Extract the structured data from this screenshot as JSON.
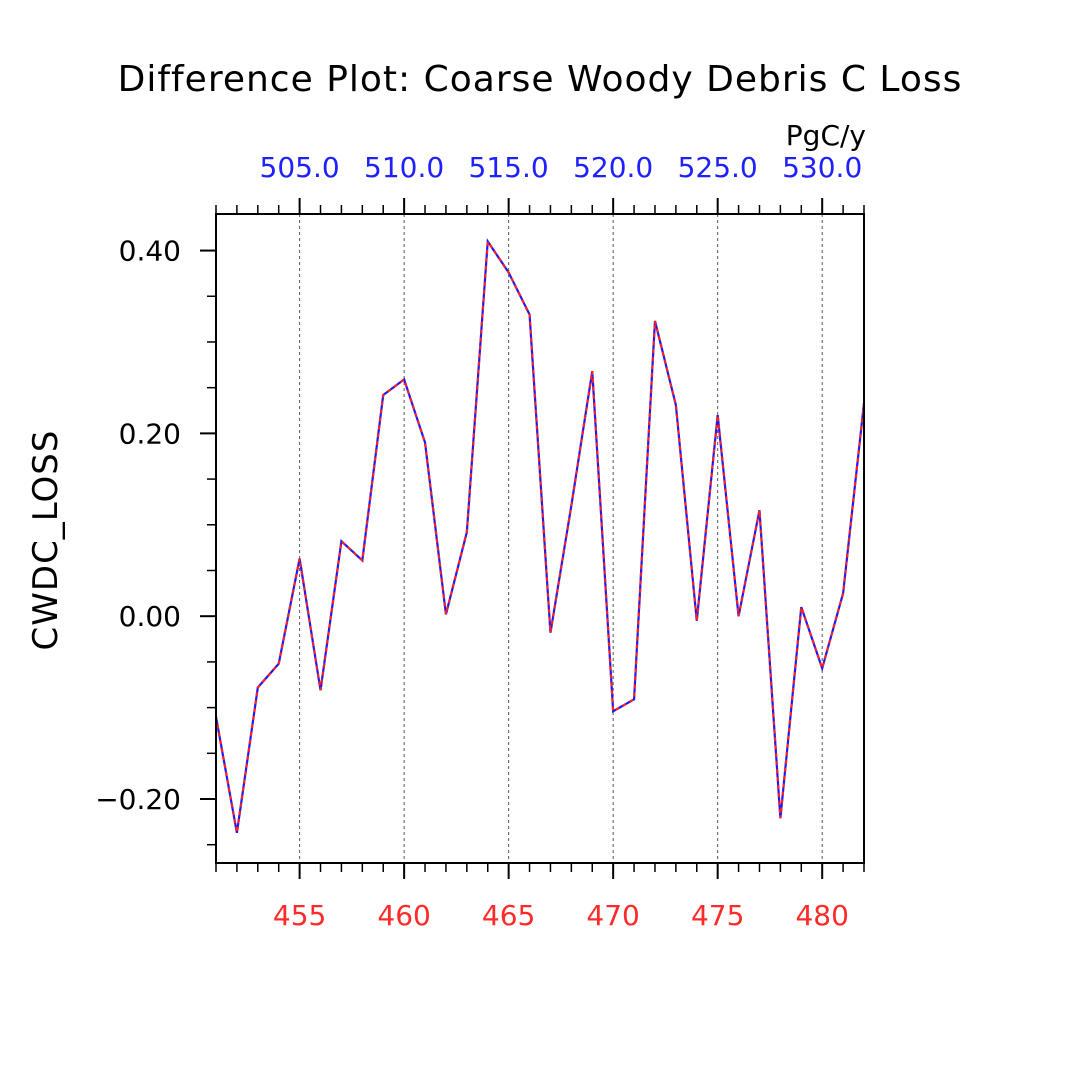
{
  "chart_data": {
    "type": "line",
    "title": "Difference Plot: Coarse Woody Debris C Loss",
    "units": "PgC/y",
    "ylabel": "CWDC_LOSS",
    "xlabel": "",
    "xlim": [
      451,
      482
    ],
    "ylim": [
      -0.27,
      0.44
    ],
    "x_ticks": [
      455,
      460,
      465,
      470,
      475,
      480
    ],
    "x_tick_labels": [
      "455",
      "460",
      "465",
      "470",
      "475",
      "480"
    ],
    "top_ticks": [
      455,
      460,
      465,
      470,
      475,
      480
    ],
    "top_tick_labels": [
      "505.0",
      "510.0",
      "515.0",
      "520.0",
      "525.0",
      "530.0"
    ],
    "y_ticks": [
      -0.2,
      0.0,
      0.2,
      0.4
    ],
    "y_tick_labels": [
      "−0.20",
      "0.00",
      "0.20",
      "0.40"
    ],
    "grid": "vertical dashed",
    "colors": {
      "series_line": "#1a1aff",
      "series_dash": "#ff2020",
      "bottom_axis_labels": "#ff2a2a",
      "top_axis_labels": "#2020ff",
      "axes": "#000000"
    },
    "series": [
      {
        "x": [
          451,
          452,
          453,
          454,
          455,
          456,
          457,
          458,
          459,
          460,
          461,
          462,
          463,
          464,
          465,
          466,
          467,
          468,
          469,
          470,
          471,
          472,
          473,
          474,
          475,
          476,
          477,
          478,
          479,
          480,
          481,
          482
        ],
        "values": [
          -0.11,
          -0.237,
          -0.078,
          -0.052,
          0.063,
          -0.081,
          0.082,
          0.061,
          0.242,
          0.259,
          0.19,
          0.002,
          0.092,
          0.41,
          0.376,
          0.33,
          -0.018,
          0.121,
          0.268,
          -0.104,
          -0.091,
          0.323,
          0.231,
          -0.005,
          0.22,
          0.0,
          0.116,
          -0.221,
          0.01,
          -0.057,
          0.025,
          0.233
        ]
      }
    ]
  }
}
